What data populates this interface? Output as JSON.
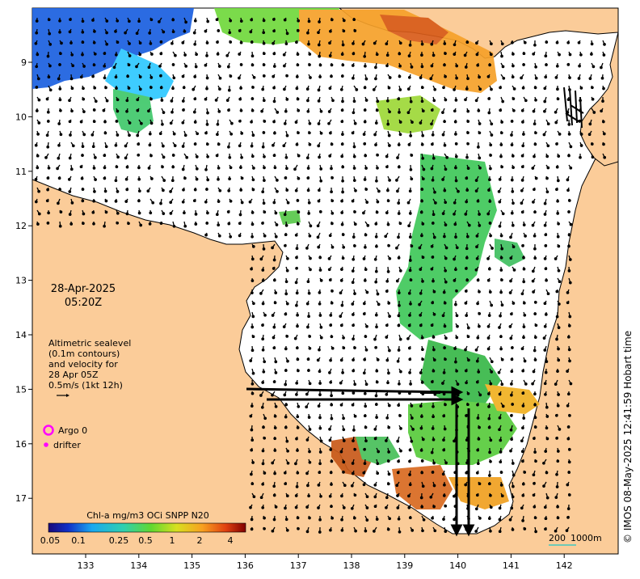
{
  "map": {
    "date": "28-Apr-2025",
    "time": "05:20Z",
    "copyright": "© IMOS 08-May-2025 12:41:59 Hobart time",
    "x_ticks": [
      "133",
      "134",
      "135",
      "136",
      "137",
      "138",
      "139",
      "140",
      "141",
      "142"
    ],
    "y_ticks": [
      "9",
      "10",
      "11",
      "12",
      "13",
      "14",
      "15",
      "16",
      "17"
    ],
    "altimetry_note": [
      "Altimetric sealevel",
      "(0.1m contours)",
      "and velocity for",
      "28 Apr 05Z",
      "0.5m/s (1kt 12h)"
    ],
    "legend": {
      "argo_label": "Argo 0",
      "drifter_label": "drifter",
      "argo_color": "#ff00ff",
      "drifter_color": "#ff00ff"
    },
    "scale_bar": {
      "label_a": "200",
      "label_b": "1000m"
    },
    "colorbar": {
      "title": "Chl-a mg/m3 OCi SNPP N20",
      "ticks": [
        "0.05",
        "0.1",
        "0.25",
        "0.5",
        "1",
        "2",
        "4"
      ]
    },
    "colors": {
      "land": "#fbcc99",
      "ocean": "#ffffff"
    }
  }
}
